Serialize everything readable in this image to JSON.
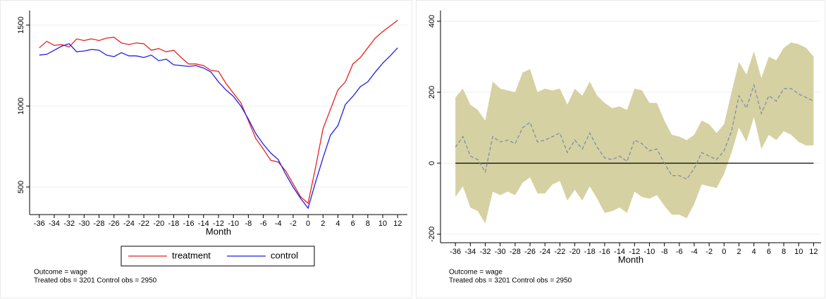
{
  "chart_data": [
    {
      "type": "line",
      "x": [
        -36,
        -35,
        -34,
        -33,
        -32,
        -31,
        -30,
        -29,
        -28,
        -27,
        -26,
        -25,
        -24,
        -23,
        -22,
        -21,
        -20,
        -19,
        -18,
        -17,
        -16,
        -15,
        -14,
        -13,
        -12,
        -11,
        -10,
        -9,
        -8,
        -7,
        -6,
        -5,
        -4,
        -3,
        -2,
        -1,
        0,
        1,
        2,
        3,
        4,
        5,
        6,
        7,
        8,
        9,
        10,
        11,
        12
      ],
      "series": [
        {
          "name": "treatment",
          "color": "#e8221f",
          "values": [
            1360,
            1400,
            1375,
            1380,
            1365,
            1415,
            1405,
            1415,
            1405,
            1420,
            1425,
            1390,
            1380,
            1390,
            1385,
            1345,
            1355,
            1335,
            1345,
            1300,
            1260,
            1260,
            1250,
            1220,
            1215,
            1140,
            1080,
            1020,
            910,
            800,
            735,
            665,
            655,
            600,
            520,
            440,
            400,
            620,
            860,
            980,
            1100,
            1150,
            1260,
            1300,
            1360,
            1420,
            1460,
            1495,
            1530
          ]
        },
        {
          "name": "control",
          "color": "#1f1fe8",
          "values": [
            1315,
            1320,
            1345,
            1370,
            1385,
            1335,
            1340,
            1350,
            1345,
            1315,
            1305,
            1330,
            1310,
            1310,
            1300,
            1315,
            1280,
            1290,
            1255,
            1250,
            1245,
            1250,
            1235,
            1210,
            1150,
            1100,
            1060,
            1000,
            920,
            830,
            765,
            710,
            670,
            580,
            500,
            430,
            370,
            530,
            680,
            820,
            880,
            1010,
            1060,
            1120,
            1150,
            1210,
            1265,
            1310,
            1360
          ]
        }
      ],
      "xlim": [
        -37.3,
        13.3
      ],
      "xticks": [
        -36,
        -34,
        -32,
        -30,
        -28,
        -26,
        -24,
        -22,
        -20,
        -18,
        -16,
        -14,
        -12,
        -10,
        -8,
        -6,
        -4,
        -2,
        0,
        2,
        4,
        6,
        8,
        10,
        12
      ],
      "ylim": [
        330,
        1590
      ],
      "yticks": [
        500,
        1000,
        1500
      ],
      "grid": true,
      "x_label": "Month",
      "notes": [
        "Outcome = wage",
        "Treated obs = 3201 Control obs = 2950"
      ]
    },
    {
      "type": "band",
      "x": [
        -36,
        -35,
        -34,
        -33,
        -32,
        -31,
        -30,
        -29,
        -28,
        -27,
        -26,
        -25,
        -24,
        -23,
        -22,
        -21,
        -20,
        -19,
        -18,
        -17,
        -16,
        -15,
        -14,
        -13,
        -12,
        -11,
        -10,
        -9,
        -8,
        -7,
        -6,
        -5,
        -4,
        -3,
        -2,
        -1,
        0,
        1,
        2,
        3,
        4,
        5,
        6,
        7,
        8,
        9,
        10,
        11,
        12
      ],
      "estimate": {
        "color": "#7d8fa6",
        "values": [
          45,
          75,
          20,
          10,
          -25,
          75,
          60,
          65,
          55,
          100,
          115,
          60,
          65,
          75,
          85,
          30,
          65,
          40,
          85,
          45,
          15,
          10,
          20,
          5,
          65,
          55,
          35,
          40,
          0,
          -35,
          -35,
          -45,
          -15,
          30,
          20,
          10,
          35,
          90,
          190,
          155,
          220,
          140,
          190,
          175,
          210,
          210,
          195,
          185,
          175
        ]
      },
      "band": {
        "color": "#d6d1a2",
        "upper": [
          185,
          210,
          165,
          150,
          120,
          230,
          210,
          205,
          200,
          255,
          265,
          200,
          210,
          205,
          210,
          165,
          210,
          190,
          230,
          190,
          170,
          155,
          160,
          150,
          210,
          205,
          170,
          170,
          120,
          80,
          75,
          65,
          80,
          120,
          110,
          85,
          110,
          200,
          285,
          250,
          315,
          240,
          300,
          290,
          325,
          340,
          335,
          325,
          300
        ],
        "lower": [
          -95,
          -65,
          -125,
          -135,
          -170,
          -80,
          -90,
          -80,
          -90,
          -55,
          -40,
          -85,
          -85,
          -60,
          -50,
          -105,
          -75,
          -105,
          -65,
          -100,
          -140,
          -135,
          -125,
          -140,
          -80,
          -95,
          -100,
          -90,
          -120,
          -145,
          -145,
          -155,
          -115,
          -60,
          -65,
          -70,
          -30,
          30,
          100,
          60,
          130,
          40,
          80,
          65,
          90,
          80,
          60,
          50,
          50
        ]
      },
      "refline": 0,
      "xlim": [
        -38,
        13
      ],
      "xticks": [
        -36,
        -34,
        -32,
        -30,
        -28,
        -26,
        -24,
        -22,
        -20,
        -18,
        -16,
        -14,
        -12,
        -10,
        -8,
        -6,
        -4,
        -2,
        0,
        2,
        4,
        6,
        8,
        10,
        12
      ],
      "ylim": [
        -224,
        430
      ],
      "yticks": [
        -200,
        0,
        200,
        400
      ],
      "grid": true,
      "x_label": "Month",
      "notes": [
        "Outcome = wage",
        "Treated obs = 3201 Control obs = 2950"
      ]
    }
  ]
}
